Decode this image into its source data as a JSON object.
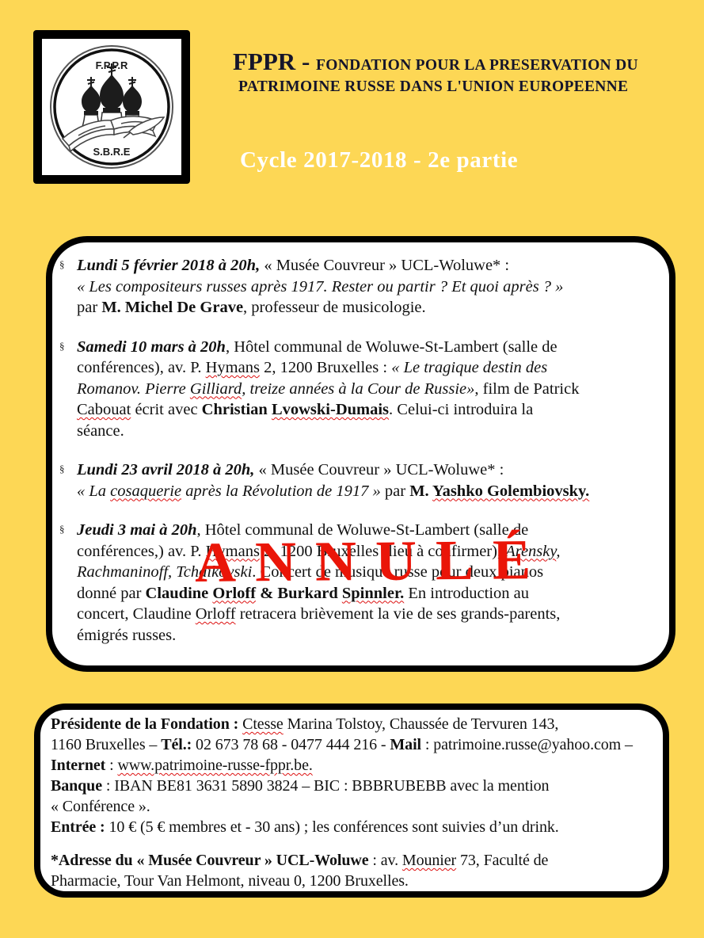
{
  "colors": {
    "background": "#FDD755",
    "header_text": "#15152b",
    "cycle_text": "#ffffff",
    "stamp_red": "#EA1508",
    "body_text": "#111111",
    "box_border": "#000000",
    "spellcheck_underline": "#dd1111"
  },
  "logo": {
    "top": "F.P.P.R",
    "bottom": "S.B.R.E"
  },
  "header": {
    "abbr": "FPPR - ",
    "line1": "FONDATION POUR LA PRESERVATION DU",
    "line2": "PATRIMOINE RUSSE DANS L'UNION EUROPEENNE",
    "cycle": "Cycle 2017-2018 - 2e partie"
  },
  "stamp": {
    "text": "ANNULÉ"
  },
  "events": [
    {
      "marker": "§",
      "segments": [
        {
          "t": "Lundi 5 février 2018 à 20h,",
          "b": 1,
          "i": 1
        },
        {
          "t": " « Musée Couvreur » UCL-Woluwe* :"
        },
        {
          "br": 1
        },
        {
          "t": "« Les compositeurs russes après 1917. Rester ou partir ? Et quoi après ? »",
          "i": 1
        },
        {
          "br": 1
        },
        {
          "t": "par "
        },
        {
          "t": "M. Michel De Grave",
          "b": 1
        },
        {
          "t": ", professeur de musicologie."
        }
      ]
    },
    {
      "marker": "§",
      "segments": [
        {
          "t": "Samedi 10 mars à 20h",
          "b": 1,
          "i": 1
        },
        {
          "t": ", Hôtel communal de Woluwe-St-Lambert (salle de"
        },
        {
          "br": 1
        },
        {
          "t": "conférences), av. P. "
        },
        {
          "t": "Hymans",
          "sp": 1
        },
        {
          "t": " 2, 1200 Bruxelles : "
        },
        {
          "t": "« Le tragique destin des",
          "i": 1
        },
        {
          "br": 1
        },
        {
          "t": "Romanov. Pierre ",
          "i": 1
        },
        {
          "t": "Gilliard",
          "i": 1,
          "sp": 1
        },
        {
          "t": ", treize années à la Cour de Russie»",
          "i": 1
        },
        {
          "t": ", film de Patrick"
        },
        {
          "br": 1
        },
        {
          "t": "Cabouat",
          "sp": 1
        },
        {
          "t": " écrit avec "
        },
        {
          "t": "Christian ",
          "b": 1
        },
        {
          "t": "Lvowski-Dumais",
          "b": 1,
          "sp": 1
        },
        {
          "t": ". Celui-ci introduira la"
        },
        {
          "br": 1
        },
        {
          "t": "séance."
        }
      ]
    },
    {
      "marker": "§",
      "segments": [
        {
          "t": "Lundi 23 avril 2018 à 20h,",
          "b": 1,
          "i": 1
        },
        {
          "t": " « Musée Couvreur » UCL-Woluwe* :"
        },
        {
          "br": 1
        },
        {
          "t": "« La ",
          "i": 1
        },
        {
          "t": "cosaquerie",
          "i": 1,
          "sp": 1
        },
        {
          "t": " après la Révolution de 1917 »",
          "i": 1
        },
        {
          "t": " par "
        },
        {
          "t": "M. ",
          "b": 1
        },
        {
          "t": "Yashko Golembiovsky.",
          "b": 1,
          "sp": 1
        }
      ]
    },
    {
      "marker": "§",
      "segments": [
        {
          "t": "Jeudi 3 mai à 20h",
          "b": 1,
          "i": 1
        },
        {
          "t": ", Hôtel communal de Woluwe-St-Lambert (salle de"
        },
        {
          "br": 1
        },
        {
          "t": "conférences,) av. P. "
        },
        {
          "t": "Hymans",
          "sp": 1
        },
        {
          "t": " 2, 1200 Bruxelles (lieu à confirmer), "
        },
        {
          "t": "Arensky",
          "i": 1,
          "sp": 1
        },
        {
          "t": ",",
          "i": 1
        },
        {
          "br": 1
        },
        {
          "t": "Rachmaninoff, Tchaikovski",
          "i": 1
        },
        {
          "t": ". Concert de musique russe pour deux pianos"
        },
        {
          "br": 1
        },
        {
          "t": "donné par "
        },
        {
          "t": "Claudine ",
          "b": 1
        },
        {
          "t": "Orloff",
          "b": 1,
          "sp": 1
        },
        {
          "t": " & Burkard ",
          "b": 1
        },
        {
          "t": "Spinnler.",
          "b": 1,
          "sp": 1
        },
        {
          "t": " En introduction au"
        },
        {
          "br": 1
        },
        {
          "t": "concert, Claudine "
        },
        {
          "t": "Orloff",
          "sp": 1
        },
        {
          "t": " retracera brièvement la vie de ses grands-parents,"
        },
        {
          "br": 1
        },
        {
          "t": "émigrés russes."
        }
      ]
    }
  ],
  "footer": {
    "contact_segments": [
      {
        "t": "Présidente de la Fondation : ",
        "b": 1
      },
      {
        "t": "Ctesse",
        "sp": 1
      },
      {
        "t": " Marina Tolstoy, Chaussée de Tervuren 143,"
      },
      {
        "br": 1
      },
      {
        "t": "1160 Bruxelles – "
      },
      {
        "t": "Tél.:",
        "b": 1
      },
      {
        "t": " 02 673 78 68 - 0477 444 216 - "
      },
      {
        "t": "Mail",
        "b": 1
      },
      {
        "t": " : patrimoine.russe@yahoo.com –"
      },
      {
        "br": 1
      },
      {
        "t": "Internet",
        "b": 1
      },
      {
        "t": " : "
      },
      {
        "t": "www.patrimoine-russe-fppr.be.",
        "sp": 1
      },
      {
        "br": 1
      },
      {
        "t": "Banque",
        "b": 1
      },
      {
        "t": " : IBAN BE81 3631 5890 3824 – BIC : BBBRUBEBB avec la mention"
      },
      {
        "br": 1
      },
      {
        "t": "« Conférence »."
      },
      {
        "br": 1
      },
      {
        "t": "Entrée :",
        "b": 1
      },
      {
        "t": " 10 € (5 € membres et - 30 ans) ; les conférences sont suivies d’un drink."
      }
    ],
    "address_segments": [
      {
        "t": "*Adresse du « Musée Couvreur » UCL-Woluwe",
        "b": 1
      },
      {
        "t": " : av. "
      },
      {
        "t": "Mounier",
        "sp": 1
      },
      {
        "t": " 73, Faculté de"
      },
      {
        "br": 1
      },
      {
        "t": "Pharmacie, Tour Van Helmont, niveau 0, 1200 Bruxelles."
      }
    ]
  }
}
